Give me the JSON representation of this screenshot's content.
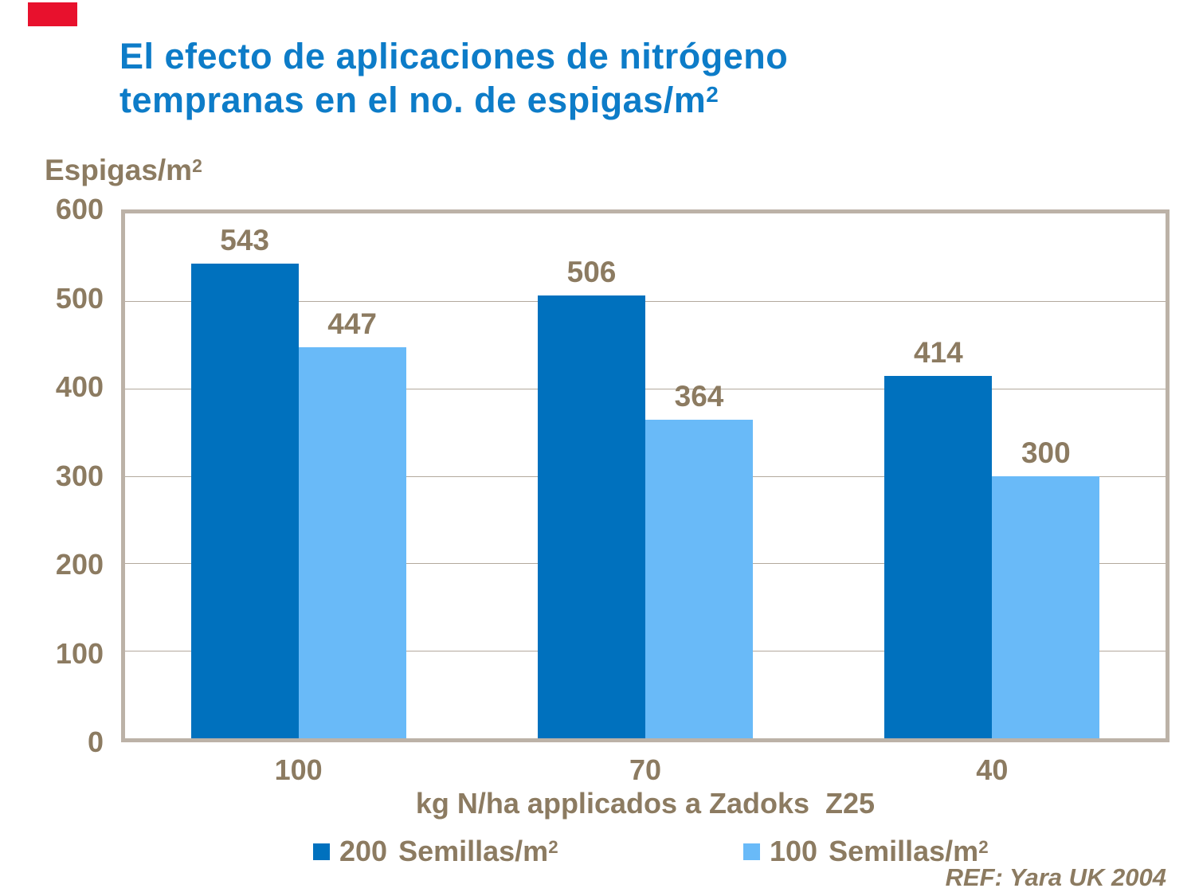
{
  "slide": {
    "accent_color": "#E8112D",
    "title_color": "#0D7CC8",
    "text_color": "#8C7B61",
    "title_line1": "El efecto de aplicaciones de nitrógeno",
    "title_line2": "tempranas en el no. de espigas/m",
    "title_sup": "2",
    "ref_text": "REF: Yara UK 2004"
  },
  "chart_data": {
    "type": "bar",
    "title": "El efecto de aplicaciones de nitrógeno tempranas en el no. de espigas/m2",
    "categories": [
      "100",
      "70",
      "40"
    ],
    "series": [
      {
        "name": "200 Semillas/m2",
        "legend_num": "200",
        "legend_text": "Semillas/m",
        "legend_sup": "2",
        "color": "#0071BE",
        "values": [
          543,
          506,
          414
        ]
      },
      {
        "name": "100 Semillas/m2",
        "legend_num": "100",
        "legend_text": "Semillas/m",
        "legend_sup": "2",
        "color": "#69BAF8",
        "values": [
          447,
          364,
          300
        ]
      }
    ],
    "xlabel": "kg N/ha applicados a Zadoks  Z25",
    "ylabel": "Espigas/m",
    "ylabel_sup": "2",
    "ylim": [
      0,
      600
    ],
    "yticks": [
      0,
      100,
      200,
      300,
      400,
      500,
      600
    ],
    "grid": true,
    "gridline_color": "#B3A99D",
    "border_color": "#BCB2A7",
    "legend_position": "bottom",
    "value_labels": true
  }
}
